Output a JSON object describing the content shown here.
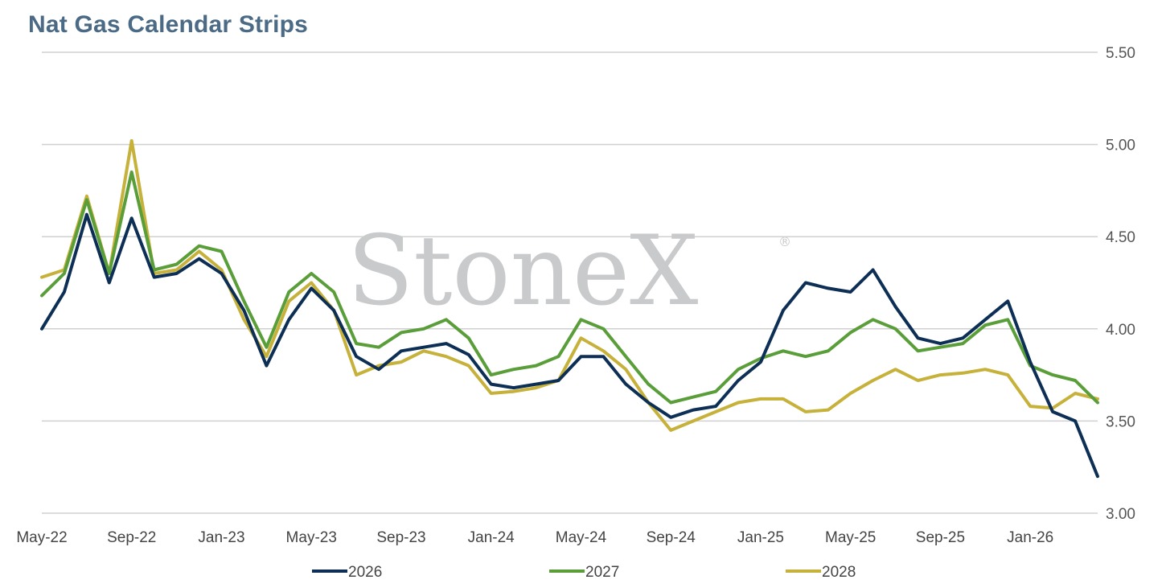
{
  "title": "Nat Gas Calendar Strips",
  "watermark": {
    "text": "StoneX",
    "mark": "®"
  },
  "colors": {
    "2026": "#0d2f55",
    "2027": "#5a9e3a",
    "2028": "#c6b13a",
    "grid": "#d0d0d0",
    "title": "#4a6a86"
  },
  "chart_data": {
    "type": "line",
    "title": "Nat Gas Calendar Strips",
    "xlabel": "",
    "ylabel": "",
    "ylim": [
      3.0,
      5.5
    ],
    "yticks": [
      "3.00",
      "3.50",
      "4.00",
      "4.50",
      "5.00",
      "5.50"
    ],
    "y_axis_side": "right",
    "grid": true,
    "legend": "bottom",
    "x_tick_labels": [
      "May-22",
      "Sep-22",
      "Jan-23",
      "May-23",
      "Sep-23",
      "Jan-24",
      "May-24",
      "Sep-24",
      "Jan-25",
      "May-25",
      "Sep-25",
      "Jan-26"
    ],
    "x": [
      "2022-05",
      "2022-06",
      "2022-07",
      "2022-08",
      "2022-09",
      "2022-10",
      "2022-11",
      "2022-12",
      "2023-01",
      "2023-02",
      "2023-03",
      "2023-04",
      "2023-05",
      "2023-06",
      "2023-07",
      "2023-08",
      "2023-09",
      "2023-10",
      "2023-11",
      "2023-12",
      "2024-01",
      "2024-02",
      "2024-03",
      "2024-04",
      "2024-05",
      "2024-06",
      "2024-07",
      "2024-08",
      "2024-09",
      "2024-10",
      "2024-11",
      "2024-12",
      "2025-01",
      "2025-02",
      "2025-03",
      "2025-04",
      "2025-05",
      "2025-06",
      "2025-07",
      "2025-08",
      "2025-09",
      "2025-10",
      "2025-11",
      "2025-12",
      "2026-01",
      "2026-02",
      "2026-03",
      "2026-04"
    ],
    "series": [
      {
        "name": "2026",
        "values": [
          4.0,
          4.2,
          4.62,
          4.25,
          4.6,
          4.28,
          4.3,
          4.38,
          4.3,
          4.1,
          3.8,
          4.05,
          4.22,
          4.1,
          3.85,
          3.78,
          3.88,
          3.9,
          3.92,
          3.86,
          3.7,
          3.68,
          3.7,
          3.72,
          3.85,
          3.85,
          3.7,
          3.6,
          3.52,
          3.56,
          3.58,
          3.72,
          3.82,
          4.1,
          4.25,
          4.22,
          4.2,
          4.32,
          4.12,
          3.95,
          3.92,
          3.95,
          4.05,
          4.15,
          3.82,
          3.55,
          3.5,
          3.2
        ]
      },
      {
        "name": "2027",
        "values": [
          4.18,
          4.3,
          4.7,
          4.3,
          4.85,
          4.32,
          4.35,
          4.45,
          4.42,
          4.15,
          3.9,
          4.2,
          4.3,
          4.2,
          3.92,
          3.9,
          3.98,
          4.0,
          4.05,
          3.95,
          3.75,
          3.78,
          3.8,
          3.85,
          4.05,
          4.0,
          3.85,
          3.7,
          3.6,
          3.63,
          3.66,
          3.78,
          3.84,
          3.88,
          3.85,
          3.88,
          3.98,
          4.05,
          4.0,
          3.88,
          3.9,
          3.92,
          4.02,
          4.05,
          3.8,
          3.75,
          3.72,
          3.6
        ]
      },
      {
        "name": "2028",
        "values": [
          4.28,
          4.32,
          4.72,
          4.3,
          5.02,
          4.3,
          4.32,
          4.42,
          4.32,
          4.05,
          3.85,
          4.15,
          4.25,
          4.1,
          3.75,
          3.8,
          3.82,
          3.88,
          3.85,
          3.8,
          3.65,
          3.66,
          3.68,
          3.72,
          3.95,
          3.88,
          3.78,
          3.6,
          3.45,
          3.5,
          3.55,
          3.6,
          3.62,
          3.62,
          3.55,
          3.56,
          3.65,
          3.72,
          3.78,
          3.72,
          3.75,
          3.76,
          3.78,
          3.75,
          3.58,
          3.57,
          3.65,
          3.62
        ]
      }
    ]
  }
}
